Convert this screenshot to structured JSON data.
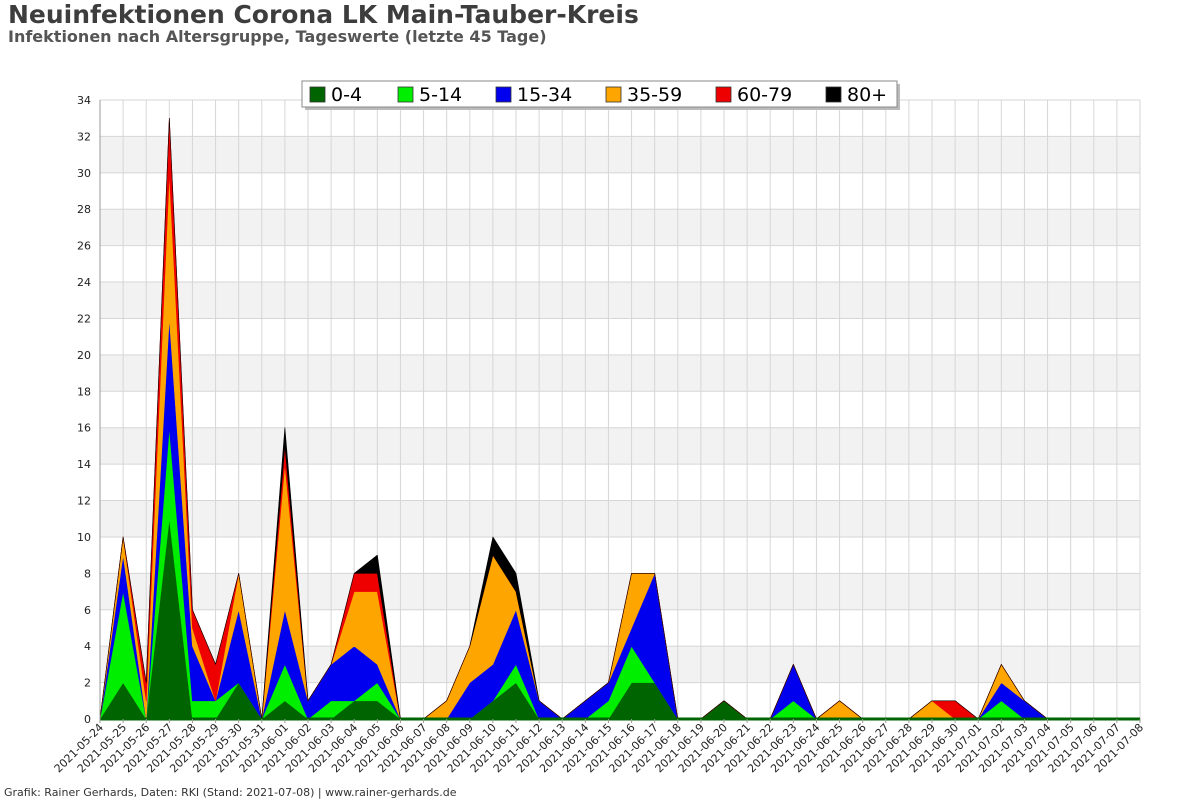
{
  "header": {
    "title": "Neuinfektionen Corona LK Main-Tauber-Kreis",
    "subtitle": "Infektionen nach Altersgruppe, Tageswerte (letzte 45 Tage)"
  },
  "footer": {
    "text": "Grafik: Rainer Gerhards, Daten: RKI (Stand: 2021-07-08) | www.rainer-gerhards.de"
  },
  "chart_data": {
    "type": "area",
    "stacked": true,
    "ylim": [
      0,
      34
    ],
    "yticks": [
      0,
      2,
      4,
      6,
      8,
      10,
      12,
      14,
      16,
      18,
      20,
      22,
      24,
      26,
      28,
      30,
      32,
      34
    ],
    "grid": true,
    "legend_position": "top-center",
    "x": [
      "2021-05-24",
      "2021-05-25",
      "2021-05-26",
      "2021-05-27",
      "2021-05-28",
      "2021-05-29",
      "2021-05-30",
      "2021-05-31",
      "2021-06-01",
      "2021-06-02",
      "2021-06-03",
      "2021-06-04",
      "2021-06-05",
      "2021-06-06",
      "2021-06-07",
      "2021-06-08",
      "2021-06-09",
      "2021-06-10",
      "2021-06-11",
      "2021-06-12",
      "2021-06-13",
      "2021-06-14",
      "2021-06-15",
      "2021-06-16",
      "2021-06-17",
      "2021-06-18",
      "2021-06-19",
      "2021-06-20",
      "2021-06-21",
      "2021-06-22",
      "2021-06-23",
      "2021-06-24",
      "2021-06-25",
      "2021-06-26",
      "2021-06-27",
      "2021-06-28",
      "2021-06-29",
      "2021-06-30",
      "2021-07-01",
      "2021-07-02",
      "2021-07-03",
      "2021-07-04",
      "2021-07-05",
      "2021-07-06",
      "2021-07-07",
      "2021-07-08"
    ],
    "series": [
      {
        "name": "0-4",
        "color": "#006400",
        "values": [
          0,
          2,
          0,
          11,
          0,
          0,
          2,
          0,
          1,
          0,
          0,
          1,
          1,
          0,
          0,
          0,
          0,
          1,
          2,
          0,
          0,
          0,
          0,
          2,
          2,
          0,
          0,
          1,
          0,
          0,
          0,
          0,
          0,
          0,
          0,
          0,
          0,
          0,
          0,
          0,
          0,
          0,
          0,
          0,
          0,
          0
        ]
      },
      {
        "name": "5-14",
        "color": "#00ee00",
        "values": [
          0,
          5,
          0,
          5,
          1,
          1,
          0,
          0,
          2,
          0,
          1,
          0,
          1,
          0,
          0,
          0,
          0,
          0,
          1,
          0,
          0,
          0,
          1,
          2,
          0,
          0,
          0,
          0,
          0,
          0,
          1,
          0,
          0,
          0,
          0,
          0,
          0,
          0,
          0,
          1,
          0,
          0,
          0,
          0,
          0,
          0
        ]
      },
      {
        "name": "15-34",
        "color": "#0000ee",
        "values": [
          0,
          2,
          0,
          6,
          3,
          0,
          4,
          0,
          3,
          1,
          2,
          3,
          1,
          0,
          0,
          0,
          2,
          2,
          3,
          1,
          0,
          1,
          1,
          1,
          6,
          0,
          0,
          0,
          0,
          0,
          2,
          0,
          0,
          0,
          0,
          0,
          0,
          0,
          0,
          1,
          1,
          0,
          0,
          0,
          0,
          0
        ]
      },
      {
        "name": "35-59",
        "color": "#ffa500",
        "values": [
          0,
          1,
          1,
          8,
          1,
          0,
          2,
          0,
          8,
          0,
          0,
          3,
          4,
          0,
          0,
          1,
          2,
          6,
          1,
          0,
          0,
          0,
          0,
          3,
          0,
          0,
          0,
          0,
          0,
          0,
          0,
          0,
          1,
          0,
          0,
          0,
          1,
          0,
          0,
          1,
          0,
          0,
          0,
          0,
          0,
          0
        ]
      },
      {
        "name": "60-79",
        "color": "#ee0000",
        "values": [
          0,
          0,
          1,
          3,
          1,
          2,
          0,
          0,
          1,
          0,
          0,
          1,
          1,
          0,
          0,
          0,
          0,
          0,
          0,
          0,
          0,
          0,
          0,
          0,
          0,
          0,
          0,
          0,
          0,
          0,
          0,
          0,
          0,
          0,
          0,
          0,
          0,
          1,
          0,
          0,
          0,
          0,
          0,
          0,
          0,
          0
        ]
      },
      {
        "name": "80+",
        "color": "#000000",
        "values": [
          0,
          0,
          0,
          0,
          0,
          0,
          0,
          0,
          1,
          0,
          0,
          0,
          1,
          0,
          0,
          0,
          0,
          1,
          1,
          0,
          0,
          0,
          0,
          0,
          0,
          0,
          0,
          0,
          0,
          0,
          0,
          0,
          0,
          0,
          0,
          0,
          0,
          0,
          0,
          0,
          0,
          0,
          0,
          0,
          0,
          0
        ]
      }
    ]
  }
}
